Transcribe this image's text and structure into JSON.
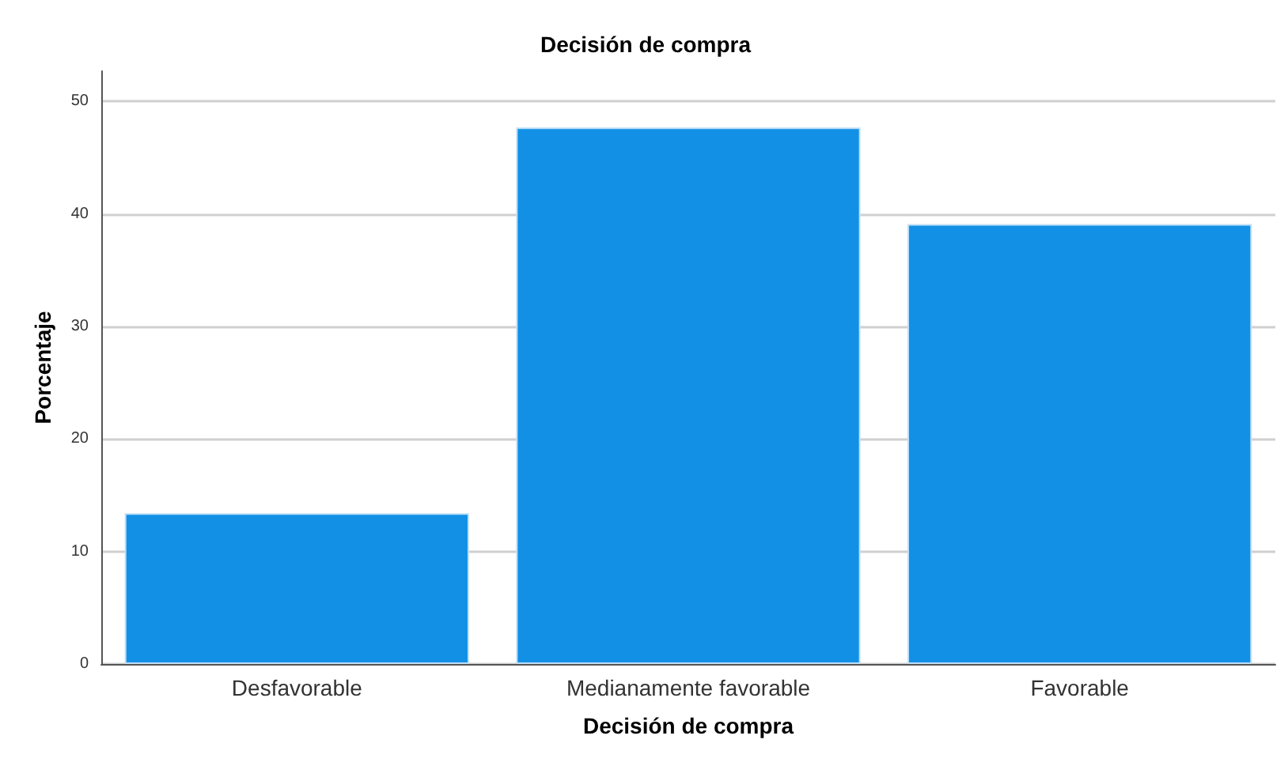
{
  "chart_data": {
    "type": "bar",
    "title": "Decisión de compra",
    "xlabel": "Decisión de compra",
    "ylabel": "Porcentaje",
    "categories": [
      "Desfavorable",
      "Medianamente favorable",
      "Favorable"
    ],
    "values": [
      13.4,
      47.7,
      39.1
    ],
    "color": "#1290e6",
    "ylim": [
      0,
      52.7
    ],
    "yticks": [
      0,
      10,
      20,
      30,
      40,
      50
    ],
    "grid": "y"
  }
}
